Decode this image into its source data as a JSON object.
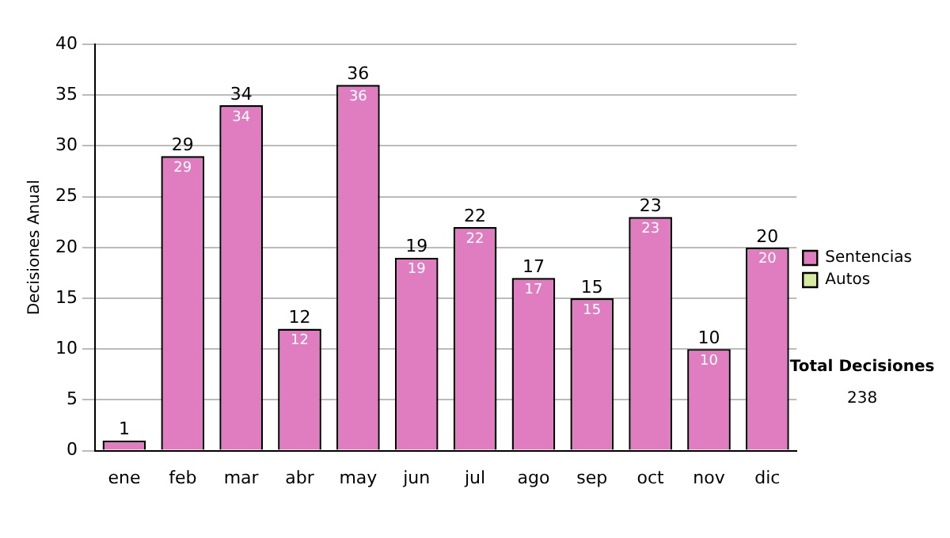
{
  "chart_data": {
    "type": "bar",
    "ylabel": "Decisiones Anual",
    "categories": [
      "ene",
      "feb",
      "mar",
      "abr",
      "may",
      "jun",
      "jul",
      "ago",
      "sep",
      "oct",
      "nov",
      "dic"
    ],
    "series": [
      {
        "name": "Sentencias",
        "color": "#e07cc0",
        "values": [
          1,
          29,
          34,
          12,
          36,
          19,
          22,
          17,
          15,
          23,
          10,
          20
        ],
        "value_labels": [
          null,
          "29",
          "34",
          "12",
          "36",
          "19",
          "22",
          "17",
          "15",
          "23",
          "10",
          "20"
        ]
      },
      {
        "name": "Autos",
        "color": "#d8eaa0",
        "values": [
          null,
          null,
          null,
          null,
          null,
          null,
          null,
          null,
          null,
          null,
          null,
          null
        ]
      }
    ],
    "stacked": true,
    "totals": [
      "1",
      "29",
      "34",
      "12",
      "36",
      "19",
      "22",
      "17",
      "15",
      "23",
      "10",
      "20"
    ],
    "ylim": [
      0,
      40
    ],
    "yticks": [
      0,
      5,
      10,
      15,
      20,
      25,
      30,
      35,
      40
    ],
    "grid": "y",
    "legend": "right",
    "annotations": [
      "Total Decisiones",
      "238"
    ]
  }
}
